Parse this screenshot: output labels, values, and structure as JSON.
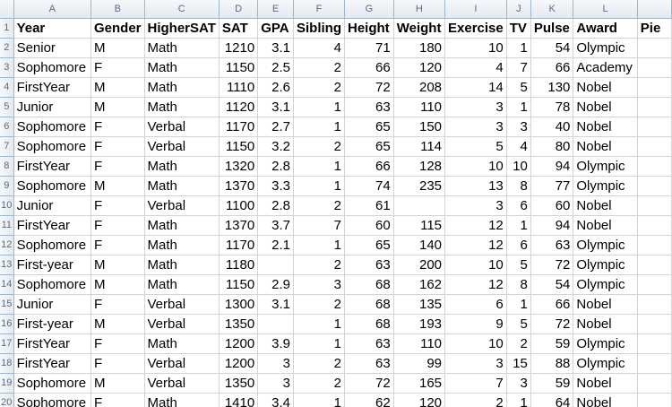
{
  "columns": [
    "A",
    "B",
    "C",
    "D",
    "E",
    "F",
    "G",
    "H",
    "I",
    "J",
    "K",
    "L",
    ""
  ],
  "header": [
    "Year",
    "Gender",
    "HigherSAT",
    "SAT",
    "GPA",
    "Sibling",
    "Height",
    "Weight",
    "Exercise",
    "TV",
    "Pulse",
    "Award",
    "Pie"
  ],
  "rows": [
    {
      "n": "2",
      "c": [
        "Senior",
        "M",
        "Math",
        "1210",
        "3.1",
        "4",
        "71",
        "180",
        "10",
        "1",
        "54",
        "Olympic",
        ""
      ]
    },
    {
      "n": "3",
      "c": [
        "Sophomore",
        "F",
        "Math",
        "1150",
        "2.5",
        "2",
        "66",
        "120",
        "4",
        "7",
        "66",
        "Academy",
        ""
      ]
    },
    {
      "n": "4",
      "c": [
        "FirstYear",
        "M",
        "Math",
        "1110",
        "2.6",
        "2",
        "72",
        "208",
        "14",
        "5",
        "130",
        "Nobel",
        ""
      ]
    },
    {
      "n": "5",
      "c": [
        "Junior",
        "M",
        "Math",
        "1120",
        "3.1",
        "1",
        "63",
        "110",
        "3",
        "1",
        "78",
        "Nobel",
        ""
      ]
    },
    {
      "n": "6",
      "c": [
        "Sophomore",
        "F",
        "Verbal",
        "1170",
        "2.7",
        "1",
        "65",
        "150",
        "3",
        "3",
        "40",
        "Nobel",
        ""
      ]
    },
    {
      "n": "7",
      "c": [
        "Sophomore",
        "F",
        "Verbal",
        "1150",
        "3.2",
        "2",
        "65",
        "114",
        "5",
        "4",
        "80",
        "Nobel",
        ""
      ]
    },
    {
      "n": "8",
      "c": [
        "FirstYear",
        "F",
        "Math",
        "1320",
        "2.8",
        "1",
        "66",
        "128",
        "10",
        "10",
        "94",
        "Olympic",
        ""
      ]
    },
    {
      "n": "9",
      "c": [
        "Sophomore",
        "M",
        "Math",
        "1370",
        "3.3",
        "1",
        "74",
        "235",
        "13",
        "8",
        "77",
        "Olympic",
        ""
      ]
    },
    {
      "n": "10",
      "c": [
        "Junior",
        "F",
        "Verbal",
        "1100",
        "2.8",
        "2",
        "61",
        "",
        "3",
        "6",
        "60",
        "Nobel",
        ""
      ]
    },
    {
      "n": "11",
      "c": [
        "FirstYear",
        "F",
        "Math",
        "1370",
        "3.7",
        "7",
        "60",
        "115",
        "12",
        "1",
        "94",
        "Nobel",
        ""
      ]
    },
    {
      "n": "12",
      "c": [
        "Sophomore",
        "F",
        "Math",
        "1170",
        "2.1",
        "1",
        "65",
        "140",
        "12",
        "6",
        "63",
        "Olympic",
        ""
      ]
    },
    {
      "n": "13",
      "c": [
        "First-year",
        "M",
        "Math",
        "1180",
        "",
        "2",
        "63",
        "200",
        "10",
        "5",
        "72",
        "Olympic",
        ""
      ]
    },
    {
      "n": "14",
      "c": [
        "Sophomore",
        "M",
        "Math",
        "1150",
        "2.9",
        "3",
        "68",
        "162",
        "12",
        "8",
        "54",
        "Olympic",
        ""
      ]
    },
    {
      "n": "15",
      "c": [
        "Junior",
        "F",
        "Verbal",
        "1300",
        "3.1",
        "2",
        "68",
        "135",
        "6",
        "1",
        "66",
        "Nobel",
        ""
      ]
    },
    {
      "n": "16",
      "c": [
        "First-year",
        "M",
        "Verbal",
        "1350",
        "",
        "1",
        "68",
        "193",
        "9",
        "5",
        "72",
        "Nobel",
        ""
      ]
    },
    {
      "n": "17",
      "c": [
        "FirstYear",
        "F",
        "Math",
        "1200",
        "3.9",
        "1",
        "63",
        "110",
        "10",
        "2",
        "59",
        "Olympic",
        ""
      ]
    },
    {
      "n": "18",
      "c": [
        "FirstYear",
        "F",
        "Verbal",
        "1200",
        "3",
        "2",
        "63",
        "99",
        "3",
        "15",
        "88",
        "Olympic",
        ""
      ]
    },
    {
      "n": "19",
      "c": [
        "Sophomore",
        "M",
        "Verbal",
        "1350",
        "3",
        "2",
        "72",
        "165",
        "7",
        "3",
        "59",
        "Nobel",
        ""
      ]
    },
    {
      "n": "20",
      "c": [
        "Sophomore",
        "F",
        "Math",
        "1410",
        "3.4",
        "1",
        "62",
        "120",
        "2",
        "1",
        "64",
        "Nobel",
        ""
      ]
    }
  ]
}
